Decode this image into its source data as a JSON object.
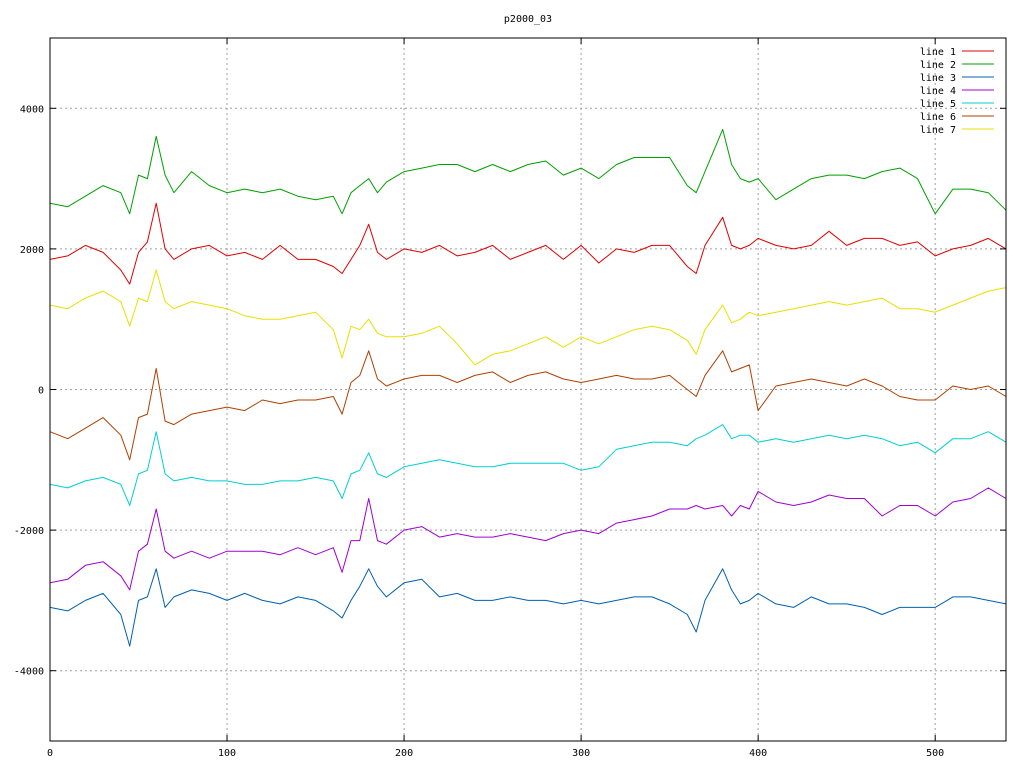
{
  "chart_data": {
    "type": "line",
    "title": "p2000_03",
    "xlabel": "",
    "ylabel": "",
    "xlim": [
      0,
      540
    ],
    "ylim": [
      -5000,
      5000
    ],
    "x_ticks": [
      0,
      100,
      200,
      300,
      400,
      500
    ],
    "x_tick_labels": [
      "0",
      "100",
      "200",
      "300",
      "400",
      "500"
    ],
    "y_ticks": [
      -4000,
      -2000,
      0,
      2000,
      4000
    ],
    "y_tick_labels": [
      "-4000",
      "-2000",
      "0",
      "2000",
      "4000"
    ],
    "grid": true,
    "legend_position": "top-right",
    "x": [
      0,
      10,
      20,
      30,
      40,
      45,
      50,
      55,
      60,
      65,
      70,
      80,
      90,
      100,
      110,
      120,
      130,
      140,
      150,
      160,
      165,
      170,
      175,
      180,
      185,
      190,
      200,
      210,
      220,
      230,
      240,
      250,
      260,
      270,
      280,
      290,
      300,
      310,
      320,
      330,
      340,
      350,
      360,
      365,
      370,
      380,
      385,
      390,
      395,
      400,
      410,
      420,
      430,
      440,
      450,
      460,
      470,
      480,
      490,
      500,
      510,
      520,
      530,
      540
    ],
    "series": [
      {
        "name": "line 1",
        "color": "#e00000",
        "values": [
          1850,
          1900,
          2050,
          1950,
          1700,
          1500,
          1950,
          2100,
          2650,
          2000,
          1850,
          2000,
          2050,
          1900,
          1950,
          1850,
          2050,
          1850,
          1850,
          1750,
          1650,
          1850,
          2050,
          2350,
          1950,
          1850,
          2000,
          1950,
          2050,
          1900,
          1950,
          2050,
          1850,
          1950,
          2050,
          1850,
          2050,
          1800,
          2000,
          1950,
          2050,
          2050,
          1750,
          1650,
          2050,
          2450,
          2050,
          2000,
          2050,
          2150,
          2050,
          2000,
          2050,
          2250,
          2050,
          2150,
          2150,
          2050,
          2100,
          1900,
          2000,
          2050,
          2150,
          2000
        ]
      },
      {
        "name": "line 2",
        "color": "#00a000",
        "values": [
          2650,
          2600,
          2750,
          2900,
          2800,
          2500,
          3050,
          3000,
          3600,
          3050,
          2800,
          3100,
          2900,
          2800,
          2850,
          2800,
          2850,
          2750,
          2700,
          2750,
          2500,
          2800,
          2900,
          3000,
          2800,
          2950,
          3100,
          3150,
          3200,
          3200,
          3100,
          3200,
          3100,
          3200,
          3250,
          3050,
          3150,
          3000,
          3200,
          3300,
          3300,
          3300,
          2900,
          2800,
          3100,
          3700,
          3200,
          3000,
          2950,
          3000,
          2700,
          2850,
          3000,
          3050,
          3050,
          3000,
          3100,
          3150,
          3000,
          2500,
          2850,
          2850,
          2800,
          2550
        ]
      },
      {
        "name": "line 3",
        "color": "#0060b0",
        "values": [
          -3100,
          -3150,
          -3000,
          -2900,
          -3200,
          -3650,
          -3000,
          -2950,
          -2550,
          -3100,
          -2950,
          -2850,
          -2900,
          -3000,
          -2900,
          -3000,
          -3050,
          -2950,
          -3000,
          -3150,
          -3250,
          -3000,
          -2800,
          -2550,
          -2800,
          -2950,
          -2750,
          -2700,
          -2950,
          -2900,
          -3000,
          -3000,
          -2950,
          -3000,
          -3000,
          -3050,
          -3000,
          -3050,
          -3000,
          -2950,
          -2950,
          -3050,
          -3200,
          -3450,
          -3000,
          -2550,
          -2850,
          -3050,
          -3000,
          -2900,
          -3050,
          -3100,
          -2950,
          -3050,
          -3050,
          -3100,
          -3200,
          -3100,
          -3100,
          -3100,
          -2950,
          -2950,
          -3000,
          -3050
        ]
      },
      {
        "name": "line 4",
        "color": "#a000d0",
        "values": [
          -2750,
          -2700,
          -2500,
          -2450,
          -2650,
          -2850,
          -2300,
          -2200,
          -1700,
          -2300,
          -2400,
          -2300,
          -2400,
          -2300,
          -2300,
          -2300,
          -2350,
          -2250,
          -2350,
          -2250,
          -2600,
          -2150,
          -2150,
          -1550,
          -2150,
          -2200,
          -2000,
          -1950,
          -2100,
          -2050,
          -2100,
          -2100,
          -2050,
          -2100,
          -2150,
          -2050,
          -2000,
          -2050,
          -1900,
          -1850,
          -1800,
          -1700,
          -1700,
          -1650,
          -1700,
          -1650,
          -1800,
          -1650,
          -1700,
          -1450,
          -1600,
          -1650,
          -1600,
          -1500,
          -1550,
          -1550,
          -1800,
          -1650,
          -1650,
          -1800,
          -1600,
          -1550,
          -1400,
          -1550
        ]
      },
      {
        "name": "line 5",
        "color": "#00d0d0",
        "values": [
          -1350,
          -1400,
          -1300,
          -1250,
          -1350,
          -1650,
          -1200,
          -1150,
          -600,
          -1200,
          -1300,
          -1250,
          -1300,
          -1300,
          -1350,
          -1350,
          -1300,
          -1300,
          -1250,
          -1300,
          -1550,
          -1200,
          -1150,
          -900,
          -1200,
          -1250,
          -1100,
          -1050,
          -1000,
          -1050,
          -1100,
          -1100,
          -1050,
          -1050,
          -1050,
          -1050,
          -1150,
          -1100,
          -850,
          -800,
          -750,
          -750,
          -800,
          -700,
          -650,
          -500,
          -700,
          -650,
          -650,
          -750,
          -700,
          -750,
          -700,
          -650,
          -700,
          -650,
          -700,
          -800,
          -750,
          -900,
          -700,
          -700,
          -600,
          -750
        ]
      },
      {
        "name": "line 6",
        "color": "#b04000",
        "values": [
          -600,
          -700,
          -550,
          -400,
          -650,
          -1000,
          -400,
          -350,
          300,
          -450,
          -500,
          -350,
          -300,
          -250,
          -300,
          -150,
          -200,
          -150,
          -150,
          -100,
          -350,
          100,
          200,
          550,
          150,
          50,
          150,
          200,
          200,
          100,
          200,
          250,
          100,
          200,
          250,
          150,
          100,
          150,
          200,
          150,
          150,
          200,
          0,
          -100,
          200,
          550,
          250,
          300,
          350,
          -300,
          50,
          100,
          150,
          100,
          50,
          150,
          50,
          -100,
          -150,
          -150,
          50,
          0,
          50,
          -100
        ]
      },
      {
        "name": "line 7",
        "color": "#e8e000",
        "values": [
          1200,
          1150,
          1300,
          1400,
          1250,
          900,
          1300,
          1250,
          1700,
          1250,
          1150,
          1250,
          1200,
          1150,
          1050,
          1000,
          1000,
          1050,
          1100,
          850,
          450,
          900,
          850,
          1000,
          800,
          750,
          750,
          800,
          900,
          650,
          350,
          500,
          550,
          650,
          750,
          600,
          750,
          650,
          750,
          850,
          900,
          850,
          700,
          500,
          850,
          1200,
          950,
          1000,
          1100,
          1050,
          1100,
          1150,
          1200,
          1250,
          1200,
          1250,
          1300,
          1150,
          1150,
          1100,
          1200,
          1300,
          1400,
          1450
        ]
      }
    ]
  }
}
